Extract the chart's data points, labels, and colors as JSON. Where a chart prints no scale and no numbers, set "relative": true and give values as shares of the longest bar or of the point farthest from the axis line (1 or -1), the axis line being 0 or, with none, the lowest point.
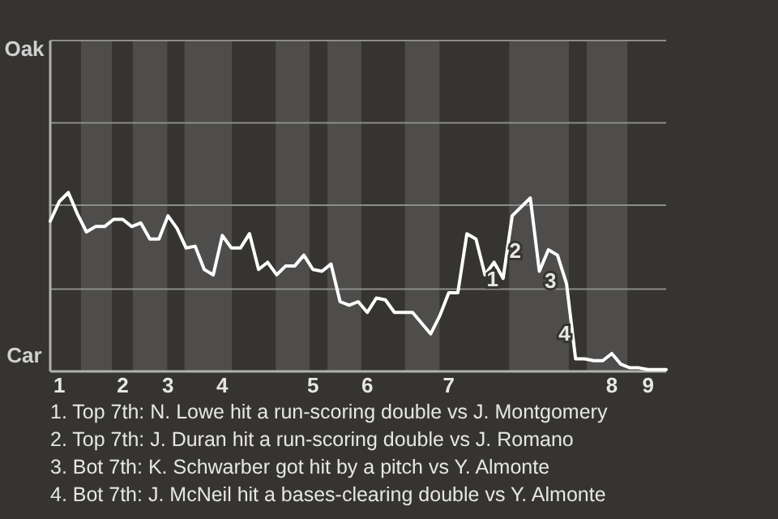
{
  "chart_data": {
    "type": "line",
    "relative": true,
    "categories": [
      null,
      "1",
      null,
      null,
      null,
      null,
      null,
      null,
      "2",
      null,
      null,
      null,
      null,
      "3",
      null,
      null,
      null,
      null,
      null,
      "4",
      null,
      null,
      null,
      null,
      null,
      null,
      null,
      null,
      null,
      "5",
      null,
      null,
      null,
      null,
      null,
      "6",
      null,
      null,
      null,
      null,
      null,
      null,
      null,
      null,
      "7",
      null,
      null,
      null,
      null,
      null,
      null,
      null,
      null,
      null,
      null,
      null,
      null,
      null,
      null,
      null,
      null,
      null,
      "8",
      null,
      null,
      null,
      "9",
      null,
      null
    ],
    "series": [
      {
        "color": "#ffffff",
        "values": [
          0.84,
          0.95,
          1,
          0.88,
          0.78,
          0.81,
          0.81,
          0.85,
          0.85,
          0.81,
          0.83,
          0.74,
          0.74,
          0.87,
          0.8,
          0.69,
          0.7,
          0.57,
          0.54,
          0.76,
          0.69,
          0.69,
          0.77,
          0.57,
          0.61,
          0.54,
          0.59,
          0.59,
          0.65,
          0.57,
          0.56,
          0.6,
          0.39,
          0.37,
          0.39,
          0.33,
          0.41,
          0.4,
          0.33,
          0.33,
          0.33,
          0.27,
          0.21,
          0.31,
          0.44,
          0.44,
          0.77,
          0.74,
          0.54,
          0.61,
          0.52,
          0.87,
          0.92,
          0.97,
          0.56,
          0.68,
          0.65,
          0.49,
          0.07,
          0.07,
          0.06,
          0.06,
          0.1,
          0.04,
          0.02,
          0.02,
          0.01,
          0.01,
          0.01
        ]
      }
    ],
    "marker": "none",
    "line_style": "solid",
    "ref_lines": [
      {
        "axis": "y",
        "value": 0.46,
        "color": "#8c8c8a"
      },
      {
        "axis": "y",
        "value": 0.93,
        "color": "#8c8c8a"
      },
      {
        "axis": "y",
        "value": 1.39,
        "color": "#8c8c8a"
      }
    ],
    "annotations": [
      "Oak",
      "Car",
      "1",
      "2",
      "3",
      "4",
      "1. Top 7th: N. Lowe hit a run-scoring double vs J. Montgomery",
      "2. Top 7th: J. Duran hit a run-scoring double vs J. Romano",
      "3. Bot 7th: K. Schwarber got hit by a pitch vs Y. Almonte",
      "4. Bot 7th: J. McNeil hit a bases-clearing double vs Y. Almonte"
    ]
  }
}
